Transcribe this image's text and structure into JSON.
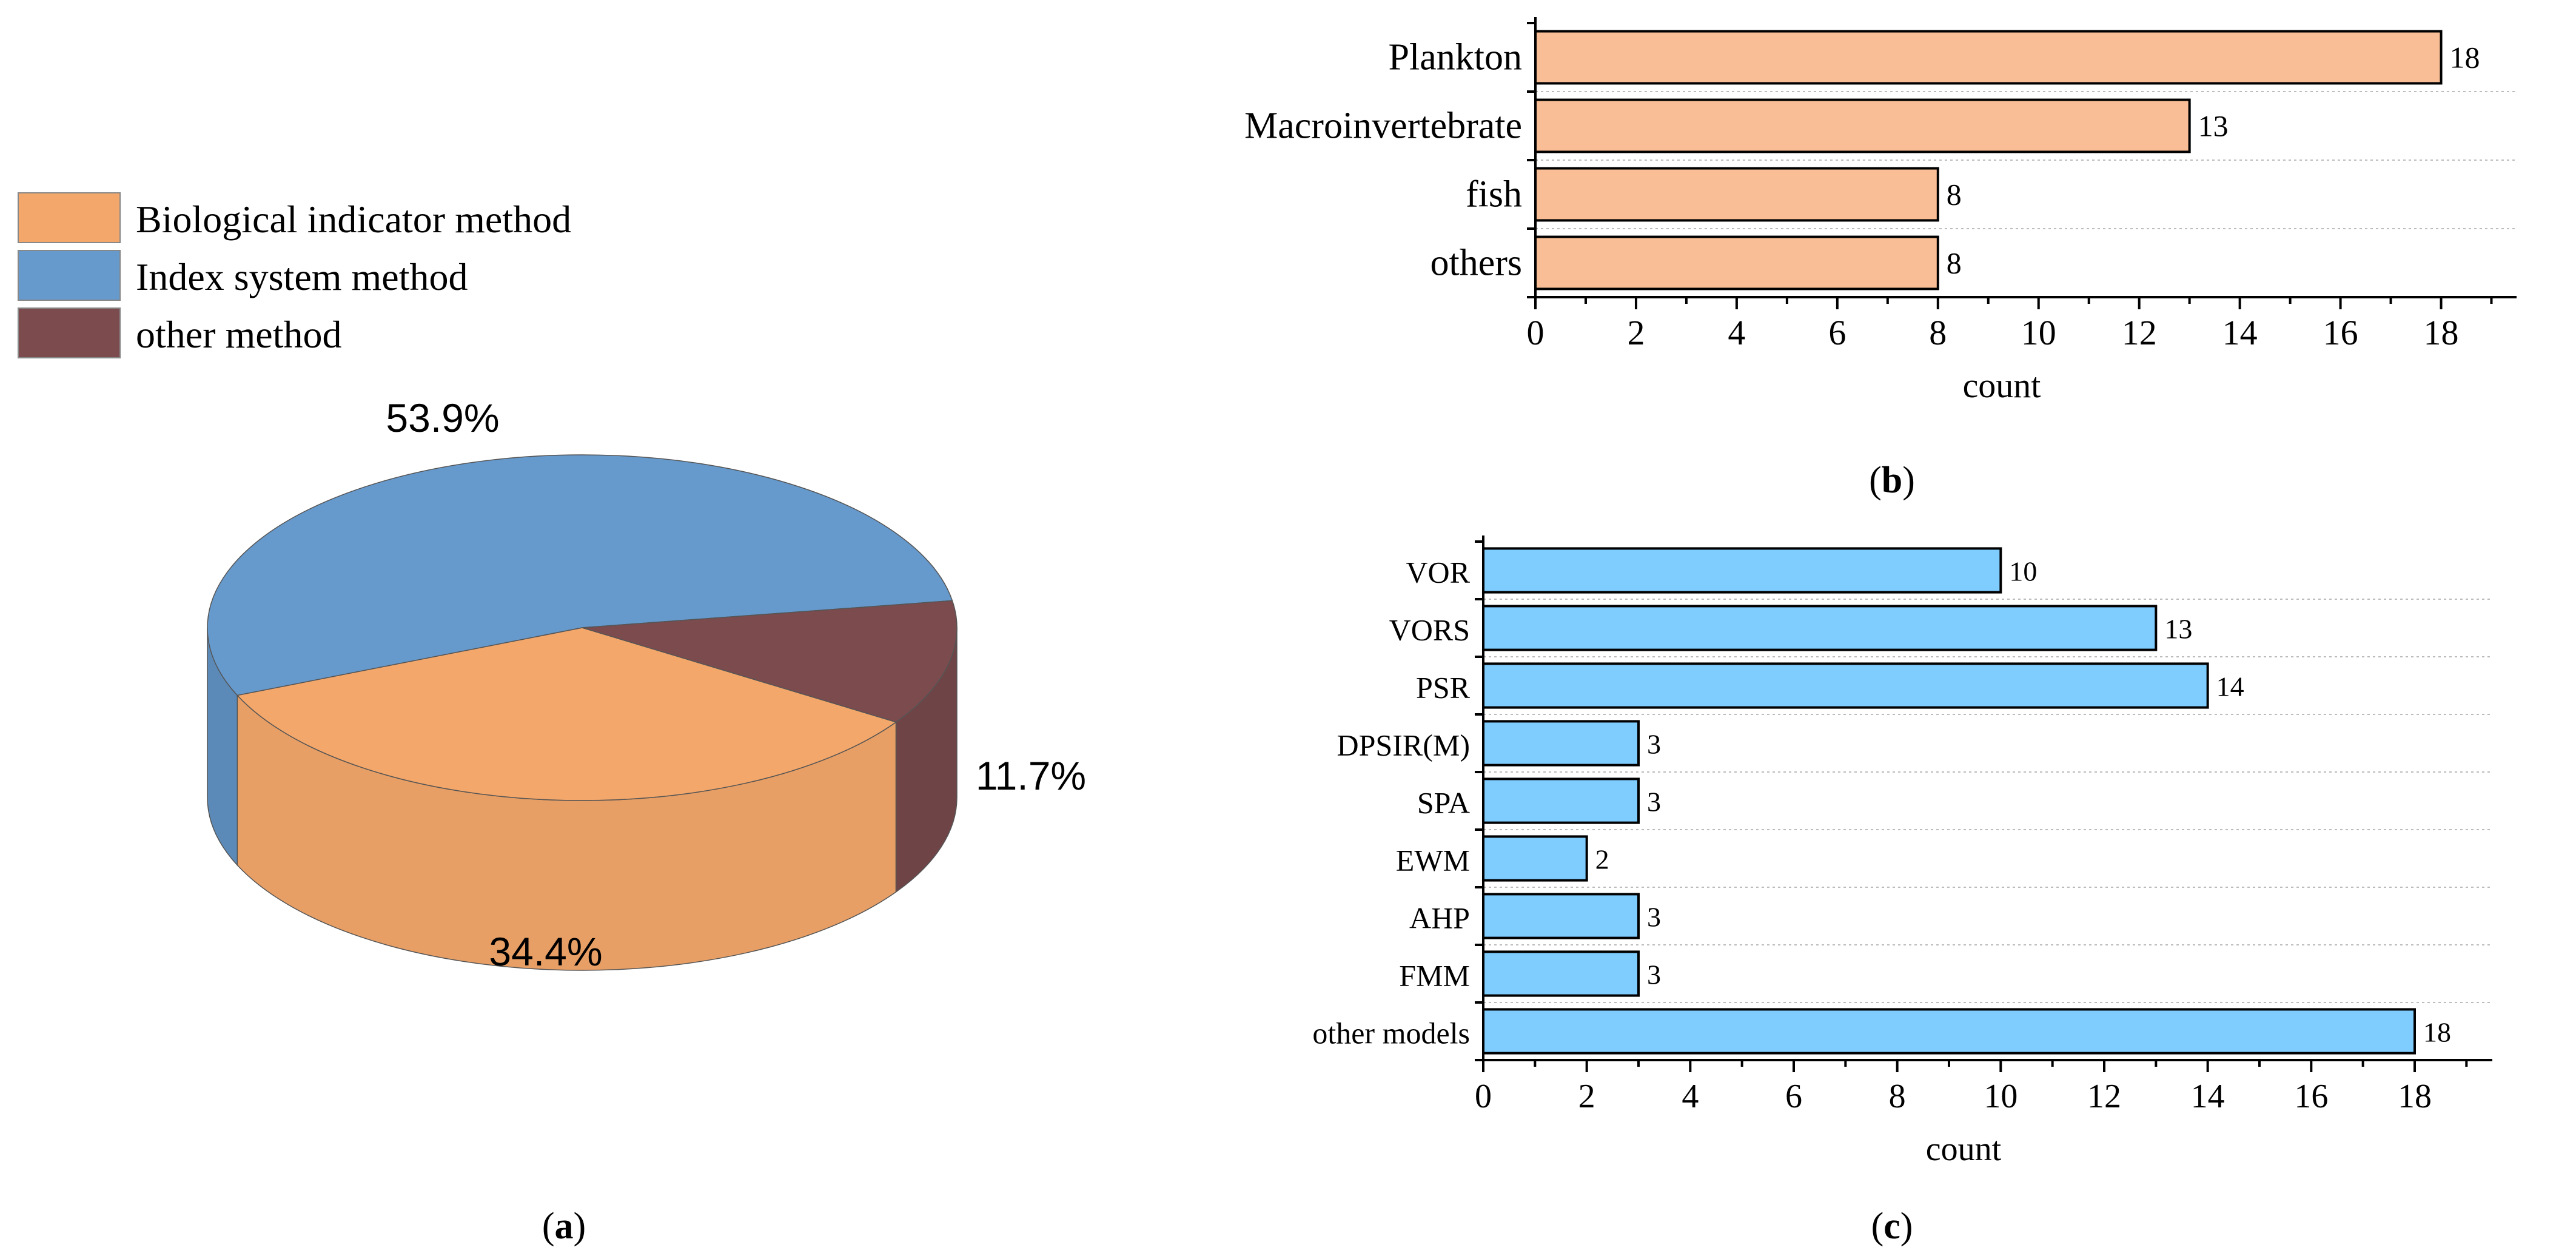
{
  "colors": {
    "biological": "#F4A76A",
    "index": "#6699CC",
    "other": "#7B4B4E",
    "bar_b": "#F9BE95",
    "bar_c": "#7FCCFF",
    "ink": "#000000",
    "grid": "#BBBBBB"
  },
  "chart_data": [
    {
      "type": "pie",
      "panel_label": "a",
      "legend": [
        "Biological indicator method",
        "Index system method",
        "other method"
      ],
      "slices": [
        {
          "name": "Biological indicator method",
          "value": 34.4,
          "label": "34.4%"
        },
        {
          "name": "Index system method",
          "value": 53.9,
          "label": "53.9%"
        },
        {
          "name": "other method",
          "value": 11.7,
          "label": "11.7%"
        }
      ]
    },
    {
      "type": "bar",
      "orientation": "horizontal",
      "panel_label": "b",
      "categories": [
        "Plankton",
        "Macroinvertebrate",
        "fish",
        "others"
      ],
      "values": [
        18,
        13,
        8,
        8
      ],
      "value_labels": [
        "18",
        "13",
        "8",
        "8"
      ],
      "xlabel": "count",
      "xlim": [
        0,
        19.5
      ],
      "xticks": [
        "0",
        "2",
        "4",
        "6",
        "8",
        "10",
        "12",
        "14",
        "16",
        "18"
      ]
    },
    {
      "type": "bar",
      "orientation": "horizontal",
      "panel_label": "c",
      "categories": [
        "VOR",
        "VORS",
        "PSR",
        "DPSIR(M)",
        "SPA",
        "EWM",
        "AHP",
        "FMM",
        "other models"
      ],
      "values": [
        10,
        13,
        14,
        3,
        3,
        2,
        3,
        3,
        18
      ],
      "value_labels": [
        "10",
        "13",
        "14",
        "3",
        "3",
        "2",
        "3",
        "3",
        "18"
      ],
      "xlabel": "count",
      "xlim": [
        0,
        19.5
      ],
      "xticks": [
        "0",
        "2",
        "4",
        "6",
        "8",
        "10",
        "12",
        "14",
        "16",
        "18"
      ]
    }
  ],
  "captions": {
    "a": {
      "open": "(",
      "letter": "a",
      "close": ")"
    },
    "b": {
      "open": "(",
      "letter": "b",
      "close": ")"
    },
    "c": {
      "open": "(",
      "letter": "c",
      "close": ")"
    }
  }
}
